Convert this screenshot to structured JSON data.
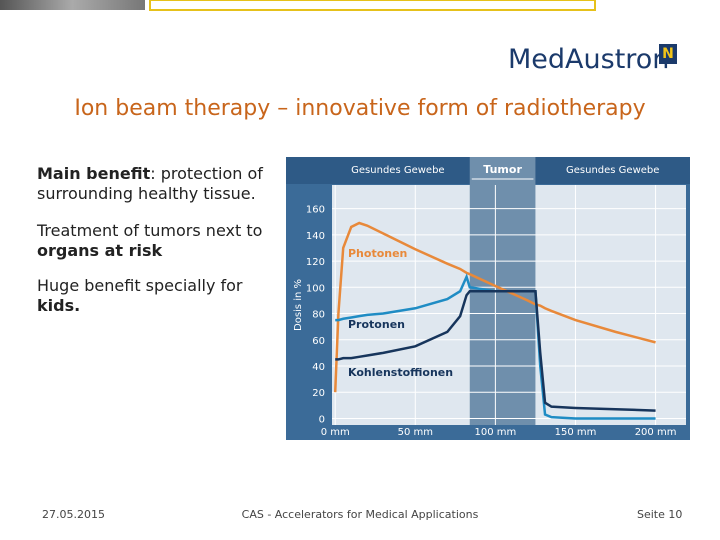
{
  "header": {
    "logo": "MedAustron",
    "badge": "N"
  },
  "title": "Ion beam therapy – innovative form of radiotherapy",
  "bullets": [
    {
      "runs": [
        {
          "text": "Main benefit",
          "bold": true
        },
        {
          "text": ": protection of surrounding healthy tissue.",
          "bold": false
        }
      ]
    },
    {
      "runs": [
        {
          "text": "Treatment of tumors next to ",
          "bold": false
        },
        {
          "text": "organs at risk",
          "bold": true
        }
      ]
    },
    {
      "runs": [
        {
          "text": "Huge benefit specially for ",
          "bold": false
        },
        {
          "text": "kids.",
          "bold": true
        }
      ]
    }
  ],
  "chart_data": {
    "type": "line",
    "y_label": "Dosis in %",
    "region_labels": [
      "Gesundes Gewebe",
      "Gesundes Gewebe"
    ],
    "tumor": {
      "label": "Tumor",
      "xrange": [
        84,
        125
      ],
      "color": "#6f8fac"
    },
    "x": [
      0,
      2,
      5,
      10,
      15,
      20,
      30,
      50,
      70,
      78,
      82,
      84,
      100,
      120,
      125,
      128,
      131,
      135,
      150,
      175,
      200
    ],
    "series": [
      {
        "name": "Photonen",
        "color": "#e8893a",
        "values": [
          20,
          80,
          130,
          146,
          149,
          147,
          141,
          129,
          118,
          114,
          111,
          110,
          101,
          90,
          87,
          86,
          84,
          82,
          75,
          66,
          58
        ]
      },
      {
        "name": "Protonen",
        "color": "#1f8cc4",
        "values": [
          75,
          75,
          76,
          77,
          78,
          79,
          80,
          84,
          91,
          97,
          108,
          100,
          97,
          97,
          97,
          40,
          3,
          1,
          0,
          0,
          0
        ]
      },
      {
        "name": "Kohlenstoffionen",
        "color": "#17355c",
        "values": [
          45,
          45,
          46,
          46,
          47,
          48,
          50,
          55,
          66,
          78,
          94,
          97,
          97,
          97,
          97,
          50,
          12,
          9,
          8,
          7,
          6
        ]
      }
    ],
    "xlim": [
      -2,
      219
    ],
    "ylim": [
      -5,
      178
    ],
    "xticks": [
      {
        "value": 0,
        "label": "0 mm"
      },
      {
        "value": 50,
        "label": "50 mm"
      },
      {
        "value": 100,
        "label": "100 mm"
      },
      {
        "value": 150,
        "label": "150 mm"
      },
      {
        "value": 200,
        "label": "200 mm"
      }
    ],
    "yticks": [
      0,
      20,
      40,
      60,
      80,
      100,
      120,
      140,
      160
    ],
    "grid": true
  },
  "footer": {
    "date": "27.05.2015",
    "center": "CAS - Accelerators for Medical Applications",
    "page": "Seite 10"
  }
}
